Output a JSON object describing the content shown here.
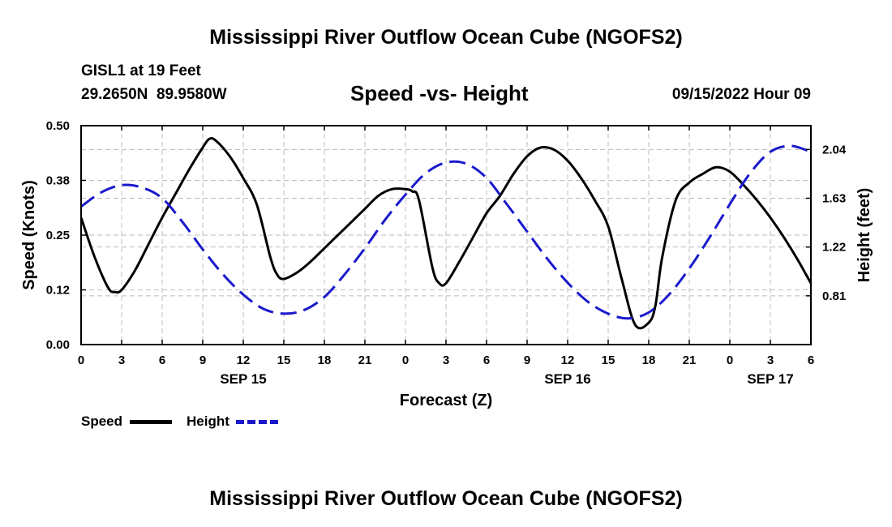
{
  "page_title": "Mississippi River Outflow Ocean Cube (NGOFS2)",
  "footer_title": "Mississippi River Outflow Ocean Cube (NGOFS2)",
  "station": {
    "name": "GISL1 at 19 Feet",
    "coords": "29.2650N  89.9580W",
    "datetime": "09/15/2022 Hour 09"
  },
  "chart_data": {
    "type": "line",
    "title": "Speed -vs- Height",
    "xlabel": "Forecast (Z)",
    "ylabel": "Speed (Knots)",
    "y2label": "Height (feet)",
    "xlim": [
      0,
      54
    ],
    "ylim": [
      0,
      0.5
    ],
    "y2lim": [
      0.4,
      2.24
    ],
    "grid": true,
    "x_ticks": [
      0,
      3,
      6,
      9,
      12,
      15,
      18,
      21,
      24,
      27,
      30,
      33,
      36,
      39,
      42,
      45,
      48,
      51,
      54
    ],
    "x_tick_labels": [
      "0",
      "3",
      "6",
      "9",
      "12",
      "15",
      "18",
      "21",
      "0",
      "3",
      "6",
      "9",
      "12",
      "15",
      "18",
      "21",
      "0",
      "3",
      "6"
    ],
    "date_labels": [
      {
        "x": 12,
        "label": "SEP 15"
      },
      {
        "x": 36,
        "label": "SEP 16"
      },
      {
        "x": 51,
        "label": "SEP 17"
      }
    ],
    "y_ticks": [
      0.0,
      0.125,
      0.25,
      0.375,
      0.5
    ],
    "y_tick_labels": [
      "0.00",
      "0.12",
      "0.25",
      "0.38",
      "0.50"
    ],
    "y2_ticks": [
      0.81,
      1.22,
      1.63,
      2.04
    ],
    "y2_tick_labels": [
      "0.81",
      "1.22",
      "1.63",
      "2.04"
    ],
    "series": [
      {
        "name": "Speed",
        "axis": "left",
        "color": "#000000",
        "style": "solid",
        "x": [
          0,
          1,
          2,
          2.5,
          3,
          4,
          5,
          6,
          7,
          8,
          9,
          9.5,
          10,
          11,
          12,
          13,
          14,
          14.5,
          15,
          16,
          17,
          18,
          19,
          20,
          21,
          22,
          23,
          24,
          24.5,
          25,
          26,
          26.5,
          27,
          28,
          29,
          30,
          31,
          32,
          33,
          34,
          35,
          36,
          37,
          38,
          39,
          40,
          41,
          42,
          42.5,
          43,
          44,
          45,
          46,
          47,
          48,
          49,
          50,
          51,
          52,
          53,
          54
        ],
        "values": [
          0.29,
          0.2,
          0.13,
          0.12,
          0.125,
          0.17,
          0.23,
          0.29,
          0.345,
          0.4,
          0.45,
          0.47,
          0.465,
          0.43,
          0.38,
          0.32,
          0.2,
          0.16,
          0.15,
          0.165,
          0.19,
          0.22,
          0.25,
          0.28,
          0.31,
          0.34,
          0.355,
          0.355,
          0.35,
          0.33,
          0.175,
          0.14,
          0.14,
          0.19,
          0.245,
          0.3,
          0.34,
          0.39,
          0.43,
          0.45,
          0.445,
          0.42,
          0.38,
          0.33,
          0.27,
          0.15,
          0.045,
          0.05,
          0.09,
          0.2,
          0.33,
          0.37,
          0.39,
          0.405,
          0.395,
          0.365,
          0.33,
          0.29,
          0.245,
          0.195,
          0.14
        ]
      },
      {
        "name": "Height",
        "axis": "right",
        "color": "#1a1acc",
        "style": "dashed",
        "x": [
          0,
          1.5,
          3,
          4.5,
          6,
          7.5,
          9,
          10.5,
          12,
          13.5,
          15,
          16.5,
          18,
          19.5,
          21,
          22.5,
          24,
          25.5,
          27,
          28.5,
          30,
          31.5,
          33,
          34.5,
          36,
          37.5,
          39,
          40.5,
          42,
          43.5,
          45,
          46.5,
          48,
          49.5,
          51,
          52.5,
          54
        ],
        "values": [
          1.56,
          1.68,
          1.74,
          1.72,
          1.63,
          1.43,
          1.2,
          0.99,
          0.82,
          0.7,
          0.66,
          0.69,
          0.8,
          0.99,
          1.21,
          1.45,
          1.66,
          1.84,
          1.93,
          1.92,
          1.8,
          1.58,
          1.35,
          1.12,
          0.92,
          0.76,
          0.66,
          0.62,
          0.67,
          0.82,
          1.04,
          1.3,
          1.58,
          1.84,
          2.02,
          2.07,
          2.02
        ]
      }
    ]
  },
  "legend": {
    "speed_label": "Speed",
    "height_label": "Height"
  }
}
